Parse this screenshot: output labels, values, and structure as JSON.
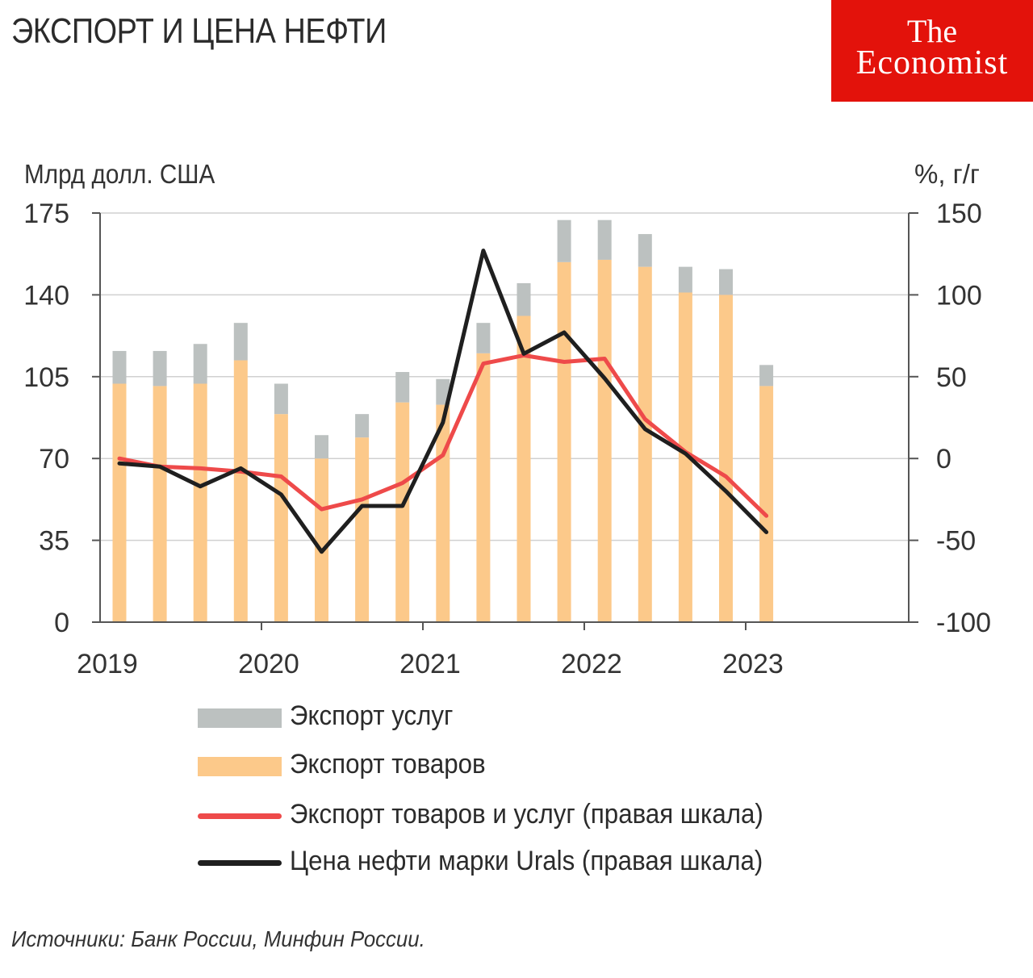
{
  "header": {
    "title": "ЭКСПОРТ И ЦЕНА НЕФТИ"
  },
  "logo": {
    "line1": "The",
    "line2": "Economist"
  },
  "colors": {
    "goods": "#fcc98a",
    "services": "#bcc1c0",
    "red_line": "#ee4a4a",
    "black_line": "#1f1f1f",
    "logo_bg": "#e3120b"
  },
  "chart_data": {
    "type": "bar",
    "ylabel": "Млрд долл. США",
    "y2label": "%, г/г",
    "ylim": [
      0,
      175
    ],
    "y2lim": [
      -100,
      150
    ],
    "yticks": [
      0,
      35,
      70,
      105,
      140,
      175
    ],
    "y2ticks": [
      "-100",
      "-50",
      "0",
      "50",
      "100",
      "150"
    ],
    "xticks": [
      "2019",
      "2020",
      "2021",
      "2022",
      "2023"
    ],
    "grid": true,
    "legend_position": "bottom",
    "series": [
      {
        "name": "Экспорт услуг",
        "type": "stacked-bar",
        "axis": "left",
        "values": [
          14,
          15,
          17,
          16,
          13,
          10,
          10,
          13,
          11,
          13,
          14,
          18,
          17,
          14,
          11,
          11,
          9
        ]
      },
      {
        "name": "Экспорт товаров",
        "type": "stacked-bar",
        "axis": "left",
        "values": [
          102,
          101,
          102,
          112,
          89,
          70,
          79,
          94,
          93,
          115,
          131,
          154,
          155,
          152,
          141,
          140,
          101
        ]
      },
      {
        "name": "Экспорт товаров и услуг (правая шкала)",
        "type": "line",
        "axis": "right",
        "values": [
          0,
          -5,
          -6,
          -8,
          -11,
          -31,
          -25,
          -15,
          2,
          58,
          63,
          59,
          61,
          24,
          4,
          -11,
          -35
        ]
      },
      {
        "name": "Цена нефти марки Urals (правая шкала)",
        "type": "line",
        "axis": "right",
        "values": [
          -3,
          -5,
          -17,
          -6,
          -22,
          -57,
          -29,
          -29,
          22,
          127,
          64,
          77,
          49,
          18,
          3,
          -20,
          -45
        ]
      }
    ]
  },
  "source": "Источники: Банк России, Минфин России."
}
